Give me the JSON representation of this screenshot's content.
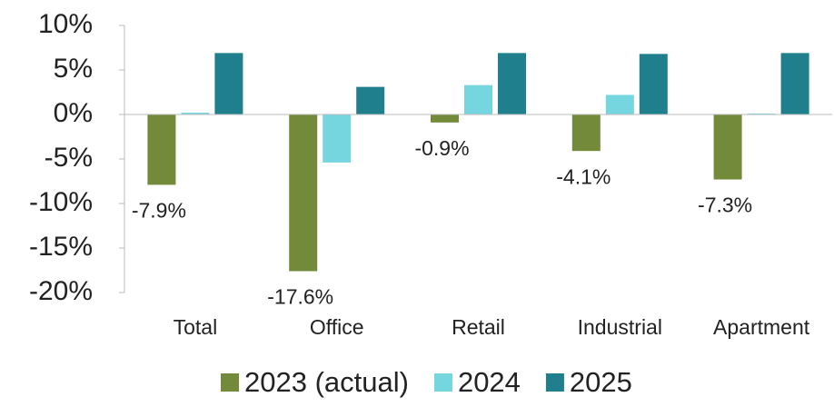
{
  "chart_data": {
    "type": "bar",
    "categories": [
      "Total",
      "Office",
      "Retail",
      "Industrial",
      "Apartment"
    ],
    "series": [
      {
        "name": "2023 (actual)",
        "color": "#728a3a",
        "values": [
          -7.9,
          -17.6,
          -0.9,
          -4.1,
          -7.3
        ],
        "value_labels": [
          "-7.9%",
          "-17.6%",
          "-0.9%",
          "-4.1%",
          "-7.3%"
        ]
      },
      {
        "name": "2024",
        "color": "#76d6e0",
        "values": [
          0.2,
          -5.4,
          3.3,
          2.2,
          0.1
        ]
      },
      {
        "name": "2025",
        "color": "#1f7f8c",
        "values": [
          6.9,
          3.1,
          6.9,
          6.8,
          6.9
        ]
      }
    ],
    "ylim": [
      -20,
      10
    ],
    "yticks": [
      {
        "value": 10,
        "label": "10%"
      },
      {
        "value": 5,
        "label": "5%"
      },
      {
        "value": 0,
        "label": "0%"
      },
      {
        "value": -5,
        "label": "-5%"
      },
      {
        "value": -10,
        "label": "-10%"
      },
      {
        "value": -15,
        "label": "-15%"
      },
      {
        "value": -20,
        "label": "-20%"
      }
    ],
    "legend": "bottom"
  }
}
